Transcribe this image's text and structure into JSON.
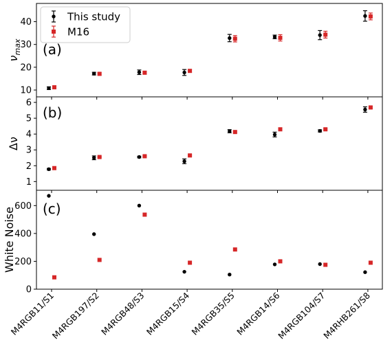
{
  "chart_data": [
    {
      "type": "scatter",
      "panel_label": "(a)",
      "ylabel": "ν_max",
      "ylim": [
        7,
        48
      ],
      "yticks": [
        10,
        20,
        30,
        40
      ],
      "categories": [
        "M4RGB11/S1",
        "M4RGB197/S2",
        "M4RGB48/S3",
        "M4RGB15/S4",
        "M4RGB35/S5",
        "M4RGB14/S6",
        "M4RGB104/S7",
        "M4RHB261/S8"
      ],
      "series": [
        {
          "name": "This study",
          "color": "#000000",
          "marker": "circle",
          "values": [
            10.8,
            17.2,
            17.8,
            17.7,
            32.8,
            33.3,
            34.1,
            42.5
          ],
          "errors": [
            0.6,
            0.6,
            1.0,
            1.3,
            1.6,
            0.8,
            2.0,
            2.3
          ]
        },
        {
          "name": "M16",
          "color": "#d62728",
          "marker": "square",
          "values": [
            11.2,
            17.1,
            17.6,
            18.4,
            32.5,
            32.9,
            34.3,
            42.3
          ],
          "errors": [
            0.5,
            0.5,
            0.6,
            0.6,
            1.4,
            1.4,
            1.5,
            1.5
          ]
        }
      ],
      "legend": {
        "placement": "top-left",
        "entries": [
          "This study",
          "M16"
        ]
      }
    },
    {
      "type": "scatter",
      "panel_label": "(b)",
      "ylabel": "Δν",
      "ylim": [
        0.45,
        6.35
      ],
      "yticks": [
        1,
        2,
        3,
        4,
        5,
        6
      ],
      "categories": [
        "M4RGB11/S1",
        "M4RGB197/S2",
        "M4RGB48/S3",
        "M4RGB15/S4",
        "M4RGB35/S5",
        "M4RGB14/S6",
        "M4RGB104/S7",
        "M4RHB261/S8"
      ],
      "series": [
        {
          "name": "This study",
          "color": "#000000",
          "marker": "circle",
          "values": [
            1.78,
            2.5,
            2.55,
            2.28,
            4.18,
            3.97,
            4.2,
            5.55
          ],
          "errors": [
            0.05,
            0.12,
            0.05,
            0.15,
            0.1,
            0.15,
            0.07,
            0.17
          ]
        },
        {
          "name": "M16",
          "color": "#d62728",
          "marker": "square",
          "values": [
            1.85,
            2.55,
            2.6,
            2.65,
            4.13,
            4.3,
            4.3,
            5.68
          ],
          "errors": [
            0.04,
            0.04,
            0.04,
            0.04,
            0.05,
            0.05,
            0.05,
            0.05
          ]
        }
      ]
    },
    {
      "type": "scatter",
      "panel_label": "(c)",
      "ylabel": "White Noise",
      "ylim": [
        0,
        710
      ],
      "yticks": [
        0,
        200,
        400,
        600
      ],
      "categories": [
        "M4RGB11/S1",
        "M4RGB197/S2",
        "M4RGB48/S3",
        "M4RGB15/S4",
        "M4RGB35/S5",
        "M4RGB14/S6",
        "M4RGB104/S7",
        "M4RHB261/S8"
      ],
      "series": [
        {
          "name": "This study",
          "color": "#000000",
          "marker": "circle",
          "values": [
            670,
            395,
            600,
            125,
            105,
            178,
            180,
            122
          ]
        },
        {
          "name": "M16",
          "color": "#d62728",
          "marker": "square",
          "values": [
            85,
            210,
            535,
            190,
            285,
            200,
            175,
            190
          ]
        }
      ]
    }
  ]
}
